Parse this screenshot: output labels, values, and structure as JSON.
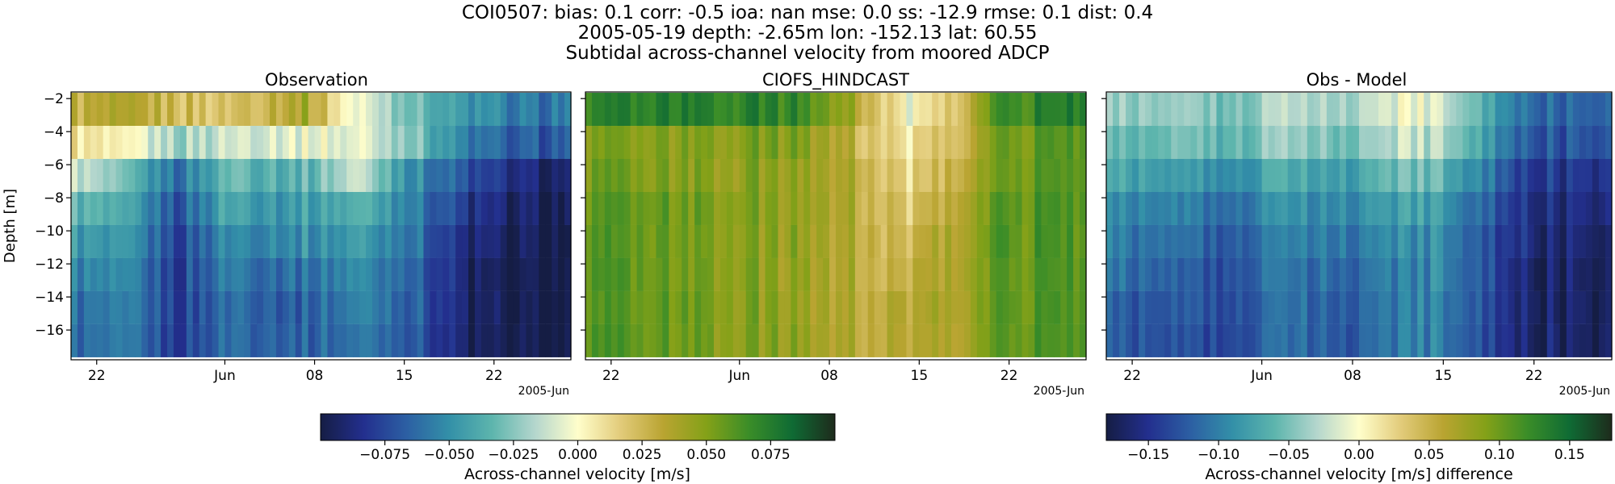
{
  "header": {
    "line1": "COI0507: bias: 0.1  corr: -0.5  ioa: nan  mse: 0.0  ss: -12.9  rmse: 0.1  dist: 0.4",
    "line2": "2005-05-19 depth: -2.65m lon: -152.13 lat: 60.55",
    "line3": "Subtidal across-channel velocity from moored ADCP"
  },
  "colors": {
    "cmap_stops": [
      "#151d44",
      "#232f8e",
      "#2c5fa3",
      "#3390a8",
      "#5db5ad",
      "#b4d6cd",
      "#fffecb",
      "#e2cb7a",
      "#b9a431",
      "#84a118",
      "#3a8d28",
      "#0f6b34",
      "#1e2b1c"
    ]
  },
  "chart_data": [
    {
      "type": "heatmap",
      "title": "Observation",
      "ylabel": "Depth [m]",
      "yticks": [
        -2,
        -4,
        -6,
        -8,
        -10,
        -12,
        -14,
        -16
      ],
      "ylim": [
        -17.8,
        -1.6
      ],
      "xticks": [
        "22",
        "Jun",
        "08",
        "15",
        "22"
      ],
      "xtick_dates": [
        "2005-05-22",
        "2005-06-01",
        "2005-06-08",
        "2005-06-15",
        "2005-06-22"
      ],
      "xoffset_label": "2005-Jun",
      "xlim": [
        "2005-05-20",
        "2005-06-28"
      ],
      "depths": [
        -2.65,
        -4.65,
        -6.65,
        -8.65,
        -10.65,
        -12.65,
        -14.65,
        -16.65
      ],
      "time_range": [
        "2005-05-20",
        "2005-06-28"
      ],
      "keyframes": [
        {
          "day": 0,
          "values": [
            0.03,
            0.01,
            -0.01,
            -0.03,
            -0.045,
            -0.055,
            -0.06,
            -0.065
          ]
        },
        {
          "day": 5,
          "values": [
            0.03,
            -0.005,
            -0.04,
            -0.05,
            -0.055,
            -0.06,
            -0.062,
            -0.064
          ]
        },
        {
          "day": 8,
          "values": [
            0.025,
            -0.02,
            -0.06,
            -0.07,
            -0.075,
            -0.078,
            -0.08,
            -0.08
          ]
        },
        {
          "day": 12,
          "values": [
            0.02,
            -0.01,
            -0.03,
            -0.04,
            -0.05,
            -0.055,
            -0.06,
            -0.06
          ]
        },
        {
          "day": 18,
          "values": [
            0.04,
            -0.005,
            -0.035,
            -0.045,
            -0.05,
            -0.06,
            -0.065,
            -0.065
          ]
        },
        {
          "day": 22,
          "values": [
            -0.005,
            -0.005,
            -0.01,
            -0.035,
            -0.045,
            -0.05,
            -0.055,
            -0.06
          ]
        },
        {
          "day": 26,
          "values": [
            -0.025,
            -0.02,
            -0.045,
            -0.05,
            -0.055,
            -0.06,
            -0.062,
            -0.063
          ]
        },
        {
          "day": 31,
          "values": [
            -0.05,
            -0.06,
            -0.075,
            -0.085,
            -0.092,
            -0.095,
            -0.095,
            -0.095
          ]
        },
        {
          "day": 35,
          "values": [
            -0.06,
            -0.07,
            -0.09,
            -0.095,
            -0.098,
            -0.1,
            -0.1,
            -0.1
          ]
        },
        {
          "day": 39,
          "values": [
            -0.055,
            -0.065,
            -0.09,
            -0.095,
            -0.1,
            -0.1,
            -0.1,
            -0.1
          ]
        }
      ],
      "colorbar": {
        "label": "Across-channel velocity [m/s]",
        "vmin": -0.1,
        "vmax": 0.1,
        "ticks": [
          "−0.075",
          "−0.050",
          "−0.025",
          "0.000",
          "0.025",
          "0.050",
          "0.075"
        ],
        "tick_values": [
          -0.075,
          -0.05,
          -0.025,
          0.0,
          0.025,
          0.05,
          0.075
        ]
      }
    },
    {
      "type": "heatmap",
      "title": "CIOFS_HINDCAST",
      "yticks": [
        -2,
        -4,
        -6,
        -8,
        -10,
        -12,
        -14,
        -16
      ],
      "ylim": [
        -17.8,
        -1.6
      ],
      "xticks": [
        "22",
        "Jun",
        "08",
        "15",
        "22"
      ],
      "xtick_dates": [
        "2005-05-22",
        "2005-06-01",
        "2005-06-08",
        "2005-06-15",
        "2005-06-22"
      ],
      "xoffset_label": "2005-Jun",
      "xlim": [
        "2005-05-20",
        "2005-06-28"
      ],
      "depths": [
        -2.65,
        -4.65,
        -6.65,
        -8.65,
        -10.65,
        -12.65,
        -14.65,
        -16.65
      ],
      "time_range": [
        "2005-05-20",
        "2005-06-28"
      ],
      "keyframes": [
        {
          "day": 0,
          "values": [
            0.07,
            0.05,
            0.055,
            0.06,
            0.06,
            0.06,
            0.06,
            0.06
          ]
        },
        {
          "day": 8,
          "values": [
            0.075,
            0.05,
            0.05,
            0.055,
            0.055,
            0.055,
            0.055,
            0.055
          ]
        },
        {
          "day": 16,
          "values": [
            0.07,
            0.05,
            0.045,
            0.045,
            0.045,
            0.045,
            0.045,
            0.045
          ]
        },
        {
          "day": 21,
          "values": [
            0.04,
            0.03,
            0.035,
            0.035,
            0.035,
            0.035,
            0.035,
            0.035
          ]
        },
        {
          "day": 25,
          "values": [
            -0.005,
            0.005,
            0.01,
            0.015,
            0.02,
            0.025,
            0.03,
            0.03
          ]
        },
        {
          "day": 28,
          "values": [
            0.02,
            0.025,
            0.03,
            0.035,
            0.04,
            0.04,
            0.04,
            0.04
          ]
        },
        {
          "day": 32,
          "values": [
            0.065,
            0.055,
            0.055,
            0.06,
            0.06,
            0.06,
            0.06,
            0.06
          ]
        },
        {
          "day": 39,
          "values": [
            0.075,
            0.06,
            0.06,
            0.06,
            0.06,
            0.06,
            0.06,
            0.06
          ]
        }
      ]
    },
    {
      "type": "heatmap",
      "title": "Obs - Model",
      "yticks": [
        -2,
        -4,
        -6,
        -8,
        -10,
        -12,
        -14,
        -16
      ],
      "ylim": [
        -17.8,
        -1.6
      ],
      "xticks": [
        "22",
        "Jun",
        "08",
        "15",
        "22"
      ],
      "xtick_dates": [
        "2005-05-22",
        "2005-06-01",
        "2005-06-08",
        "2005-06-15",
        "2005-06-22"
      ],
      "xoffset_label": "2005-Jun",
      "xlim": [
        "2005-05-20",
        "2005-06-28"
      ],
      "depths": [
        -2.65,
        -4.65,
        -6.65,
        -8.65,
        -10.65,
        -12.65,
        -14.65,
        -16.65
      ],
      "time_range": [
        "2005-05-20",
        "2005-06-28"
      ],
      "keyframes": [
        {
          "day": 0,
          "values": [
            -0.04,
            -0.06,
            -0.07,
            -0.09,
            -0.1,
            -0.11,
            -0.12,
            -0.125
          ]
        },
        {
          "day": 6,
          "values": [
            -0.05,
            -0.06,
            -0.09,
            -0.11,
            -0.12,
            -0.13,
            -0.135,
            -0.14
          ]
        },
        {
          "day": 12,
          "values": [
            -0.04,
            -0.05,
            -0.08,
            -0.1,
            -0.11,
            -0.115,
            -0.12,
            -0.12
          ]
        },
        {
          "day": 18,
          "values": [
            -0.03,
            -0.05,
            -0.075,
            -0.09,
            -0.1,
            -0.11,
            -0.115,
            -0.12
          ]
        },
        {
          "day": 23,
          "values": [
            -0.005,
            -0.02,
            -0.05,
            -0.075,
            -0.09,
            -0.095,
            -0.1,
            -0.1
          ]
        },
        {
          "day": 27,
          "values": [
            -0.03,
            -0.04,
            -0.07,
            -0.09,
            -0.1,
            -0.1,
            -0.105,
            -0.105
          ]
        },
        {
          "day": 32,
          "values": [
            -0.11,
            -0.12,
            -0.14,
            -0.15,
            -0.155,
            -0.16,
            -0.16,
            -0.16
          ]
        },
        {
          "day": 36,
          "values": [
            -0.12,
            -0.13,
            -0.15,
            -0.16,
            -0.165,
            -0.17,
            -0.17,
            -0.17
          ]
        },
        {
          "day": 39,
          "values": [
            -0.11,
            -0.12,
            -0.14,
            -0.15,
            -0.16,
            -0.165,
            -0.165,
            -0.165
          ]
        }
      ],
      "colorbar": {
        "label": "Across-channel velocity [m/s] difference",
        "vmin": -0.18,
        "vmax": 0.18,
        "ticks": [
          "−0.15",
          "−0.10",
          "−0.05",
          "0.00",
          "0.05",
          "0.10",
          "0.15"
        ],
        "tick_values": [
          -0.15,
          -0.1,
          -0.05,
          0.0,
          0.05,
          0.1,
          0.15
        ]
      }
    }
  ]
}
